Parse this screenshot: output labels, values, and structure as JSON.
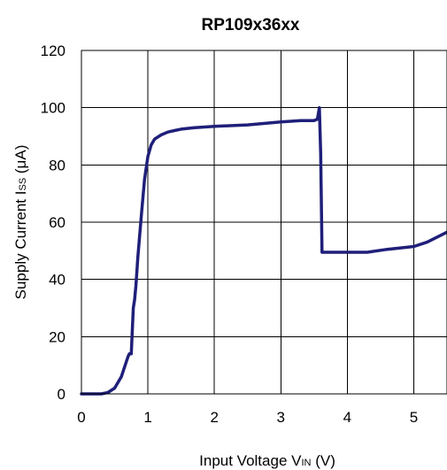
{
  "chart_data": {
    "type": "line",
    "title": "RP109x36xx",
    "xlabel": {
      "main": "Input Voltage V",
      "sub": "IN",
      "unit": " (V)"
    },
    "ylabel": {
      "main": "Supply Current I",
      "sub": "SS",
      "unit": " (μA)"
    },
    "xlim": [
      0,
      5.5
    ],
    "ylim": [
      0,
      120
    ],
    "x_ticks": [
      "0",
      "1",
      "2",
      "3",
      "4",
      "5"
    ],
    "y_ticks": [
      "0",
      "20",
      "40",
      "60",
      "80",
      "100",
      "120"
    ],
    "grid": true,
    "line_color": "#1f1f7a",
    "series": [
      {
        "x": [
          0,
          0.3,
          0.4,
          0.5,
          0.6,
          0.7,
          0.72,
          0.75,
          0.78,
          0.8,
          0.82,
          0.85,
          0.9,
          0.95,
          1.0,
          1.05,
          1.1,
          1.2,
          1.3,
          1.4,
          1.5,
          1.7,
          2.0,
          2.5,
          3.0,
          3.3,
          3.5,
          3.55,
          3.58,
          3.6,
          3.62,
          3.65,
          4.0,
          4.3,
          4.6,
          5.0,
          5.2,
          5.5
        ],
        "y": [
          0,
          0,
          0.5,
          2,
          6,
          13,
          14,
          14,
          30,
          33,
          38,
          48,
          62,
          75,
          83,
          87,
          89,
          90.5,
          91.5,
          92,
          92.5,
          93,
          93.5,
          94,
          95,
          95.5,
          95.5,
          96,
          100,
          84,
          49.5,
          49.5,
          49.5,
          49.5,
          50.5,
          51.5,
          53,
          56.5
        ]
      }
    ]
  }
}
